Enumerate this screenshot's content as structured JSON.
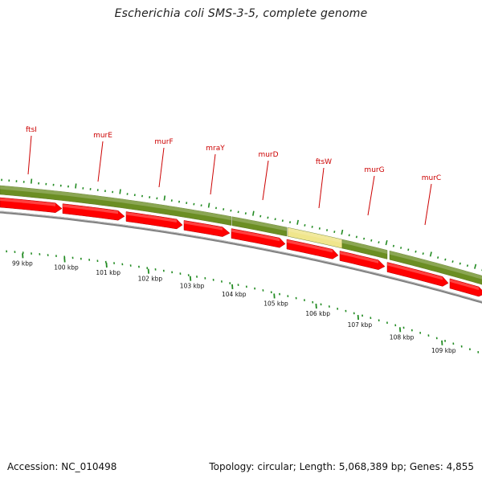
{
  "title": "Escherichia coli SMS-3-5, complete genome",
  "footer": {
    "accession": "Accession: NC_010498",
    "summary": "Topology: circular; Length: 5,068,389 bp; Genes: 4,855"
  },
  "colors": {
    "gene_track": "#6b8e23",
    "gene_track_highlight": "#f0e68c",
    "cds_arrow": "#ff0000",
    "backbone": "#808080",
    "ticks": "#228b22",
    "gene_label": "#cc0000"
  },
  "scale": {
    "labels": [
      "99 kbp",
      "100 kbp",
      "101 kbp",
      "102 kbp",
      "103 kbp",
      "104 kbp",
      "105 kbp",
      "106 kbp",
      "107 kbp",
      "108 kbp",
      "109 kbp"
    ]
  },
  "genes": [
    {
      "name": "ftsI"
    },
    {
      "name": "murE"
    },
    {
      "name": "murF"
    },
    {
      "name": "mraY"
    },
    {
      "name": "murD"
    },
    {
      "name": "ftsW"
    },
    {
      "name": "murG"
    },
    {
      "name": "murC"
    }
  ]
}
